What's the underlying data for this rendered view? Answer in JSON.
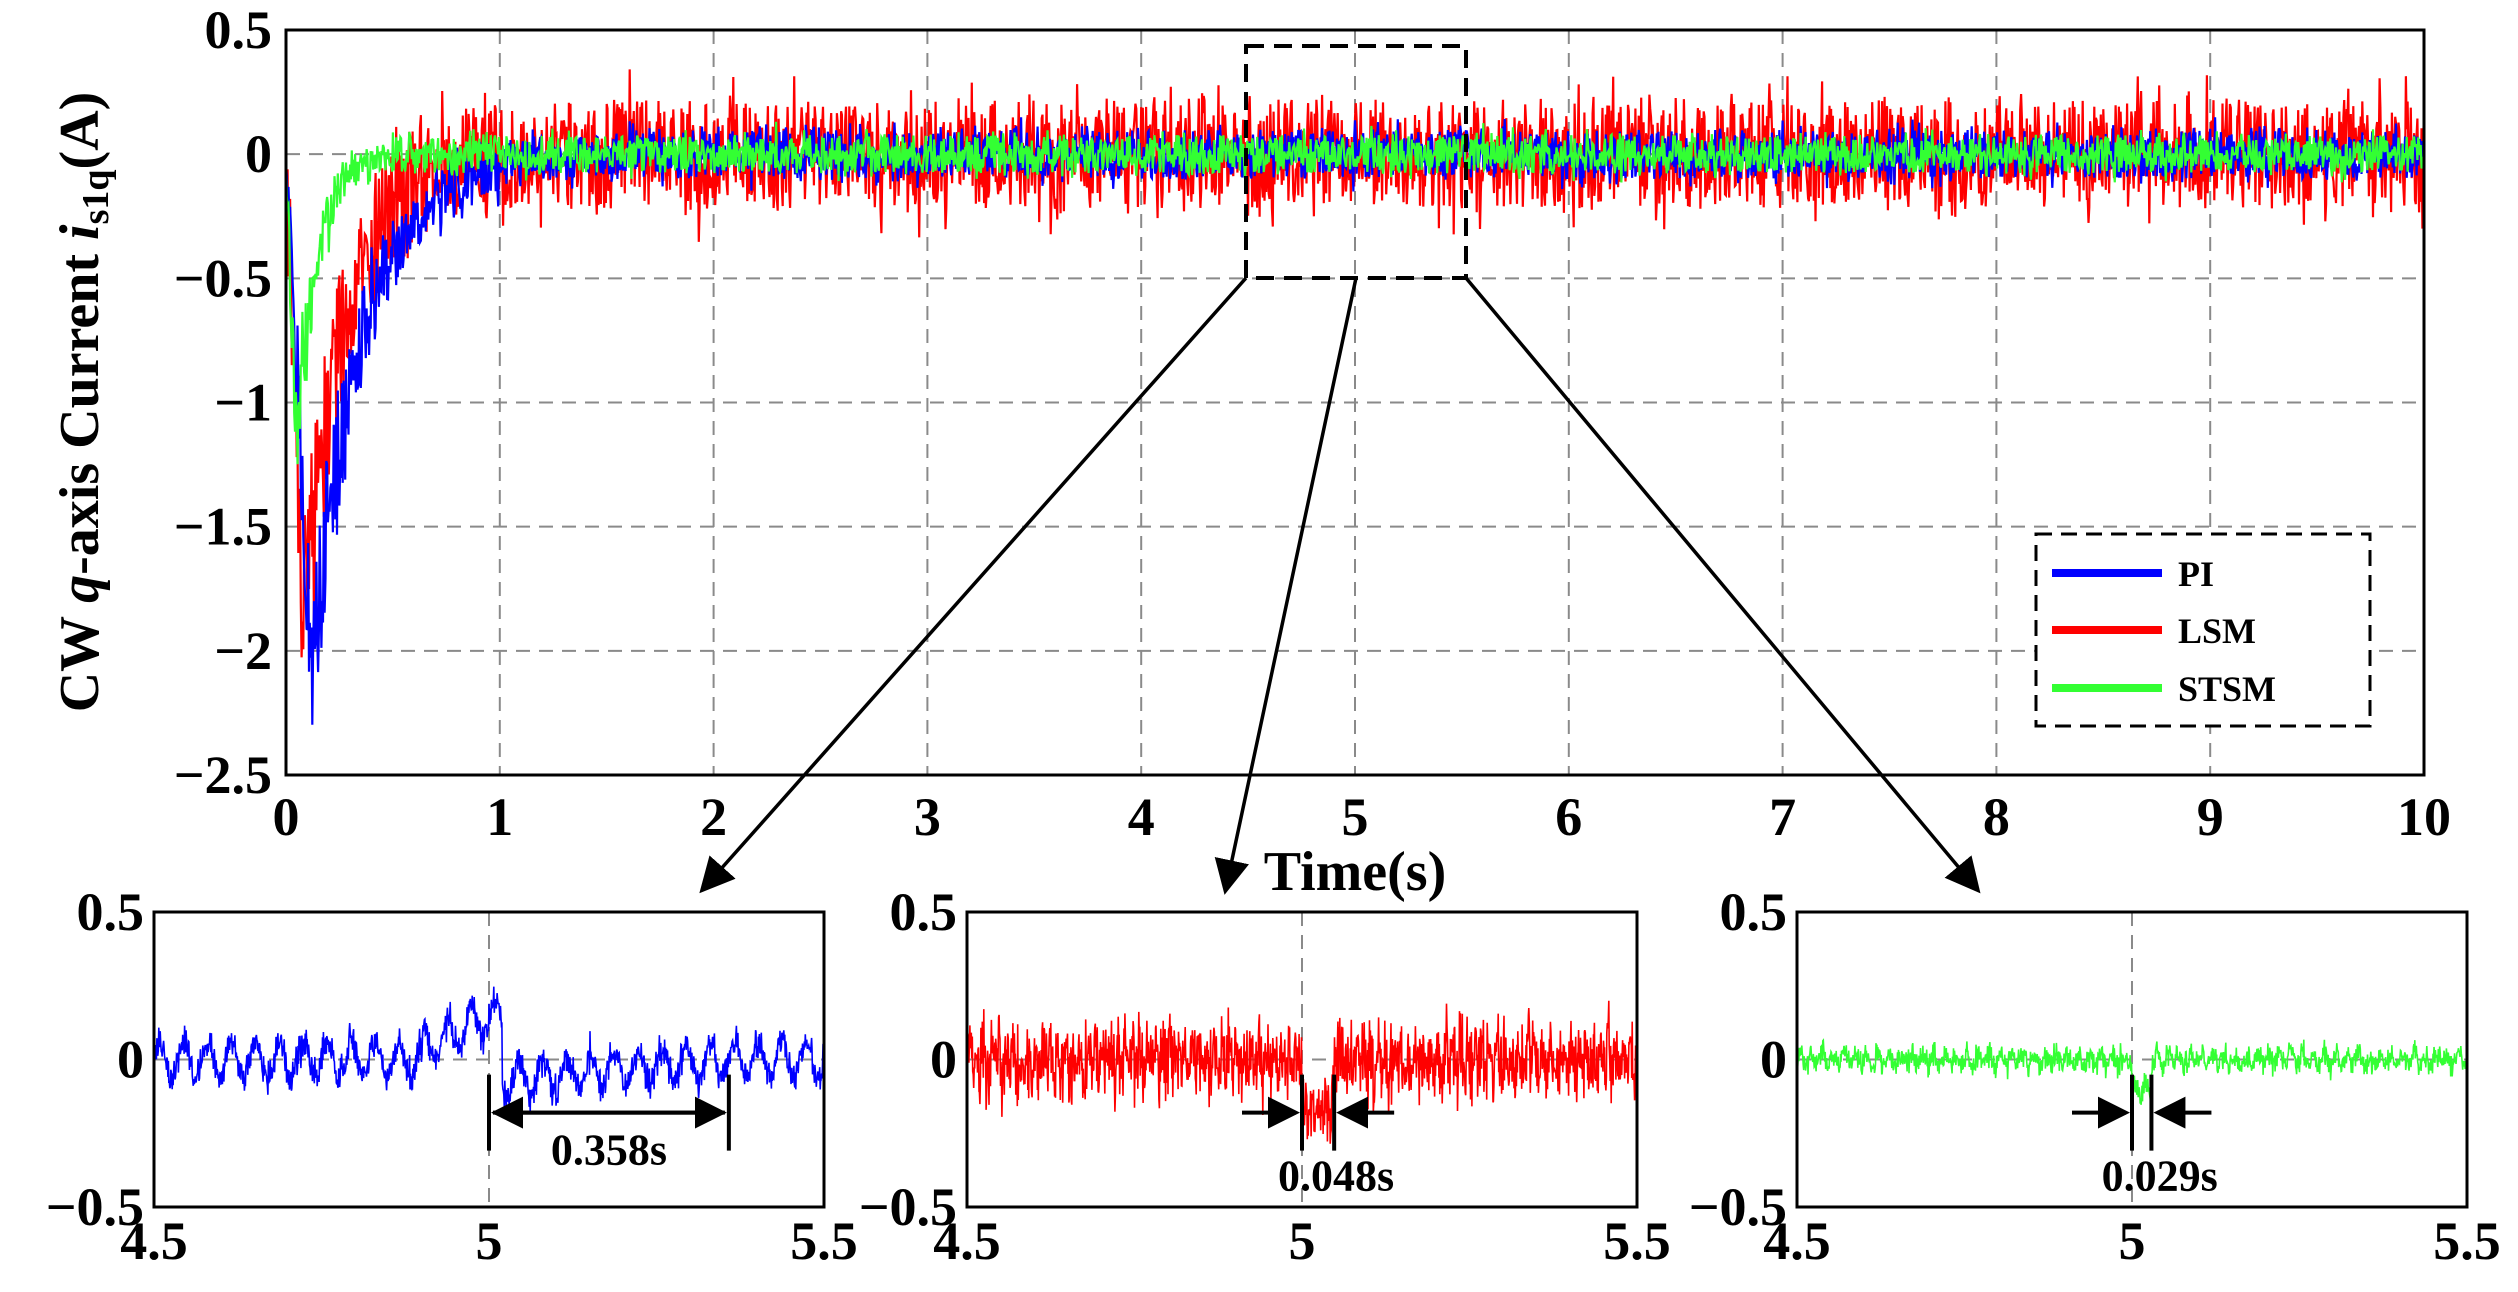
{
  "chart_data": [
    {
      "id": "main",
      "type": "line",
      "title": "",
      "ylabel_parts": [
        "CW ",
        "q",
        "-axis Current ",
        "i",
        "s1q",
        "(A)"
      ],
      "xlabel": "Time(s)",
      "xlim": [
        0,
        10
      ],
      "ylim": [
        -2.5,
        0.5
      ],
      "x_ticks": [
        "0",
        "1",
        "2",
        "3",
        "4",
        "5",
        "6",
        "7",
        "8",
        "9",
        "10"
      ],
      "y_ticks": [
        "0.5",
        "0",
        "−0.5",
        "−1",
        "−1.5",
        "−2",
        "−2.5"
      ],
      "y_tick_values": [
        0.5,
        0,
        -0.5,
        -1,
        -1.5,
        -2,
        -2.5
      ],
      "grid": true,
      "legend": {
        "placement": "bottom-right",
        "entries": [
          "PI",
          "LSM",
          "STSM"
        ]
      },
      "series": [
        {
          "name": "PI",
          "color": "#0000ff",
          "initial_dip": -2.02,
          "dip_time": 0.12,
          "settle_time": 1.0,
          "noise_amplitude": 0.09
        },
        {
          "name": "LSM",
          "color": "#ff0000",
          "initial_dip": -1.9,
          "dip_time": 0.08,
          "settle_time": 0.8,
          "noise_amplitude": 0.2
        },
        {
          "name": "STSM",
          "color": "#33ff33",
          "initial_dip": -1.2,
          "dip_time": 0.05,
          "settle_time": 0.4,
          "noise_amplitude": 0.07
        }
      ],
      "zoom_window": {
        "x": [
          4.5,
          5.5
        ],
        "y": [
          -0.5,
          0.45
        ]
      }
    },
    {
      "id": "zoom_pi",
      "type": "line",
      "series_name": "PI",
      "color": "#0000ff",
      "xlim": [
        4.5,
        5.5
      ],
      "ylim": [
        -0.5,
        0.5
      ],
      "x_ticks": [
        "4.5",
        "5",
        "5.5"
      ],
      "y_ticks": [
        "0.5",
        "0",
        "−0.5"
      ],
      "annotation": {
        "label": "0.358s",
        "x_start": 5.0,
        "x_end": 5.358
      }
    },
    {
      "id": "zoom_lsm",
      "type": "line",
      "series_name": "LSM",
      "color": "#ff0000",
      "xlim": [
        4.5,
        5.5
      ],
      "ylim": [
        -0.5,
        0.5
      ],
      "x_ticks": [
        "4.5",
        "5",
        "5.5"
      ],
      "y_ticks": [
        "0.5",
        "0",
        "−0.5"
      ],
      "annotation": {
        "label": "0.048s",
        "x_start": 5.0,
        "x_end": 5.048
      }
    },
    {
      "id": "zoom_stsm",
      "type": "line",
      "series_name": "STSM",
      "color": "#33ff33",
      "xlim": [
        4.5,
        5.5
      ],
      "ylim": [
        -0.5,
        0.5
      ],
      "x_ticks": [
        "4.5",
        "5",
        "5.5"
      ],
      "y_ticks": [
        "0.5",
        "0",
        "−0.5"
      ],
      "annotation": {
        "label": "0.029s",
        "x_start": 5.0,
        "x_end": 5.029
      }
    }
  ]
}
